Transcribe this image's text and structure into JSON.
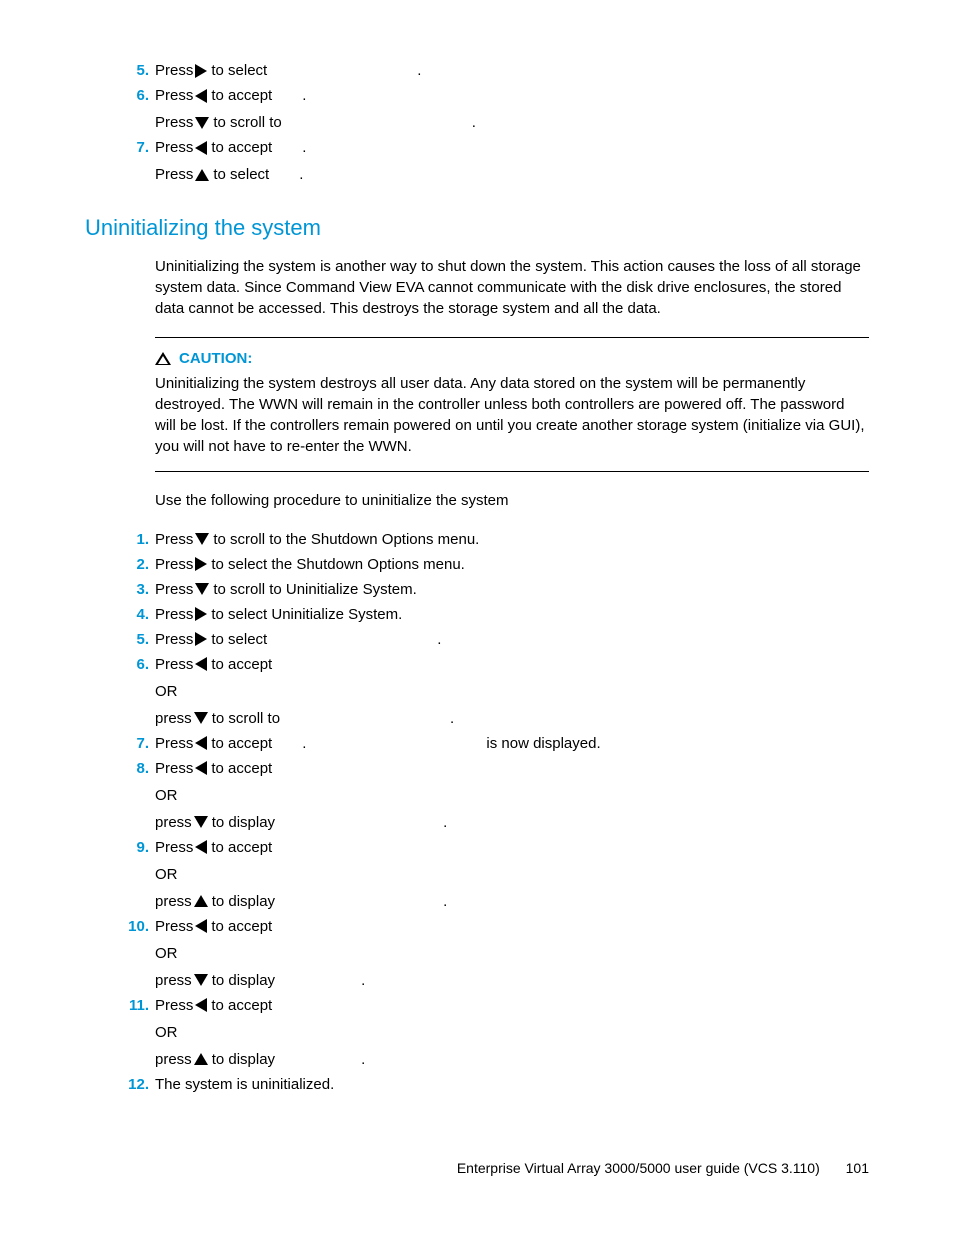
{
  "colors": {
    "accent": "#0096d6",
    "text": "#000000",
    "background": "#ffffff"
  },
  "top_steps": [
    {
      "n": "5.",
      "parts": [
        "Press ",
        {
          "icon": "right"
        },
        " to select "
      ],
      "trailing_period": "."
    },
    {
      "n": "6.",
      "parts": [
        "Press ",
        {
          "icon": "left"
        },
        " to accept "
      ],
      "trailing_period": ".",
      "sub": {
        "parts": [
          "Press ",
          {
            "icon": "down"
          },
          " to scroll to "
        ],
        "trailing_period": "."
      }
    },
    {
      "n": "7.",
      "parts": [
        "Press ",
        {
          "icon": "left"
        },
        " to accept "
      ],
      "trailing_period": ".",
      "sub": {
        "parts": [
          "Press ",
          {
            "icon": "up"
          },
          " to select "
        ],
        "trailing_period": "."
      }
    }
  ],
  "heading": "Uninitializing the system",
  "intro_para": "Uninitializing the system is another way to shut down the system. This action causes the loss of all storage system data. Since Command View EVA cannot communicate with the disk drive enclosures, the stored data cannot be accessed. This destroys the storage system and all the data.",
  "caution_label": "CAUTION:",
  "caution_text": "Uninitializing the system destroys all user data. Any data stored on the system will be permanently destroyed. The WWN will remain in the controller unless both controllers are powered off. The password will be lost. If the controllers remain powered on until you create another storage system (initialize via GUI), you will not have to re-enter the WWN.",
  "proc_intro": "Use the following procedure to uninitialize the system",
  "steps": [
    {
      "n": "1.",
      "parts": [
        "Press ",
        {
          "icon": "down"
        },
        " to scroll to the Shutdown Options menu."
      ]
    },
    {
      "n": "2.",
      "parts": [
        "Press ",
        {
          "icon": "right"
        },
        " to select the Shutdown Options menu."
      ]
    },
    {
      "n": "3.",
      "parts": [
        "Press ",
        {
          "icon": "down"
        },
        " to scroll to Uninitialize System."
      ]
    },
    {
      "n": "4.",
      "parts": [
        "Press ",
        {
          "icon": "right"
        },
        " to select Uninitialize System."
      ]
    },
    {
      "n": "5.",
      "parts": [
        "Press ",
        {
          "icon": "right"
        },
        " to select ",
        {
          "gap": 170
        },
        "."
      ]
    },
    {
      "n": "6.",
      "parts": [
        "Press ",
        {
          "icon": "left"
        },
        " to accept"
      ],
      "or": "OR",
      "sub": {
        "parts": [
          "press ",
          {
            "icon": "down"
          },
          " to scroll to ",
          {
            "gap": 170
          },
          "."
        ]
      }
    },
    {
      "n": "7.",
      "parts": [
        "Press ",
        {
          "icon": "left"
        },
        " to accept ",
        {
          "gap": 30
        },
        ". ",
        {
          "gap": 180
        },
        " is now displayed."
      ]
    },
    {
      "n": "8.",
      "parts": [
        "Press ",
        {
          "icon": "left"
        },
        " to accept"
      ],
      "or": "OR",
      "sub": {
        "parts": [
          "press ",
          {
            "icon": "down"
          },
          " to display ",
          {
            "gap": 168
          },
          "."
        ]
      }
    },
    {
      "n": "9.",
      "parts": [
        "Press ",
        {
          "icon": "left"
        },
        " to accept"
      ],
      "or": "OR",
      "sub": {
        "parts": [
          "press ",
          {
            "icon": "up"
          },
          " to display ",
          {
            "gap": 168
          },
          "."
        ]
      }
    },
    {
      "n": "10.",
      "parts": [
        "Press ",
        {
          "icon": "left"
        },
        " to accept"
      ],
      "or": "OR",
      "sub": {
        "parts": [
          "press ",
          {
            "icon": "down"
          },
          " to display ",
          {
            "gap": 86
          },
          "."
        ]
      }
    },
    {
      "n": "11.",
      "parts": [
        "Press ",
        {
          "icon": "left"
        },
        " to accept"
      ],
      "or": "OR",
      "sub": {
        "parts": [
          "press ",
          {
            "icon": "up"
          },
          " to display ",
          {
            "gap": 86
          },
          "."
        ]
      }
    },
    {
      "n": "12.",
      "parts": [
        "The system is uninitialized."
      ]
    }
  ],
  "footer_text": "Enterprise Virtual Array 3000/5000 user guide (VCS 3.110)",
  "page_number": "101"
}
